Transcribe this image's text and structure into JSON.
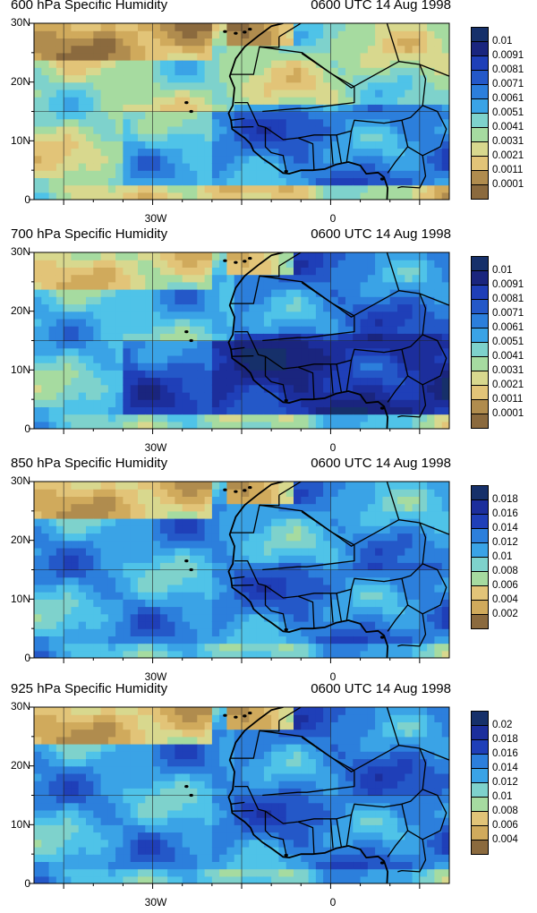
{
  "palette": [
    "#8b6a3e",
    "#b08c4e",
    "#d0aa5c",
    "#e2c478",
    "#d8d88e",
    "#a6dba0",
    "#7ed2cc",
    "#4fc3e8",
    "#3aa3e6",
    "#2c7fdc",
    "#2458c8",
    "#1f3fb8",
    "#1c2e9c",
    "#1a257e",
    "#16306a"
  ],
  "panels": [
    {
      "title": "600 hPa Specific Humidity",
      "time": "0600 UTC 14 Aug 1998",
      "legend_labels": [
        "0.01",
        "0.0091",
        "0.0081",
        "0.0071",
        "0.0061",
        "0.0051",
        "0.0041",
        "0.0031",
        "0.0021",
        "0.0011",
        "0.0001"
      ],
      "lat_labels": [
        "30N",
        "20N",
        "10N",
        "0"
      ],
      "lon_labels": [
        "30W",
        "0"
      ],
      "field": {
        "ocean": 5,
        "land": 8,
        "sahara": 5,
        "north_dry": 2,
        "tropics": 9
      }
    },
    {
      "title": "700 hPa Specific Humidity",
      "time": "0600 UTC 14 Aug 1998",
      "legend_labels": [
        "0.01",
        "0.0091",
        "0.0081",
        "0.0071",
        "0.0061",
        "0.0051",
        "0.0041",
        "0.0031",
        "0.0021",
        "0.0011",
        "0.0001"
      ],
      "lat_labels": [
        "30N",
        "20N",
        "10N",
        "0"
      ],
      "lon_labels": [
        "30W",
        "0"
      ],
      "field": {
        "ocean": 7,
        "land": 11,
        "sahara": 9,
        "north_dry": 4,
        "tropics": 12
      }
    },
    {
      "title": "850 hPa Specific Humidity",
      "time": "0600 UTC 14 Aug 1998",
      "legend_labels": [
        "0.018",
        "0.016",
        "0.014",
        "0.012",
        "0.01",
        "0.008",
        "0.006",
        "0.004",
        "0.002"
      ],
      "lat_labels": [
        "30N",
        "20N",
        "10N",
        "0"
      ],
      "lon_labels": [
        "30W",
        "0"
      ],
      "field": {
        "ocean": 8,
        "land": 9,
        "sahara": 8,
        "north_dry": 3,
        "tropics": 9
      }
    },
    {
      "title": "925 hPa Specific Humidity",
      "time": "0600 UTC 14 Aug 1998",
      "legend_labels": [
        "0.02",
        "0.018",
        "0.016",
        "0.014",
        "0.012",
        "0.01",
        "0.008",
        "0.006",
        "0.004"
      ],
      "lat_labels": [
        "30N",
        "20N",
        "10N",
        "0"
      ],
      "lon_labels": [
        "30W",
        "0"
      ],
      "field": {
        "ocean": 8,
        "land": 9,
        "sahara": 9,
        "north_dry": 3,
        "tropics": 9
      }
    }
  ]
}
